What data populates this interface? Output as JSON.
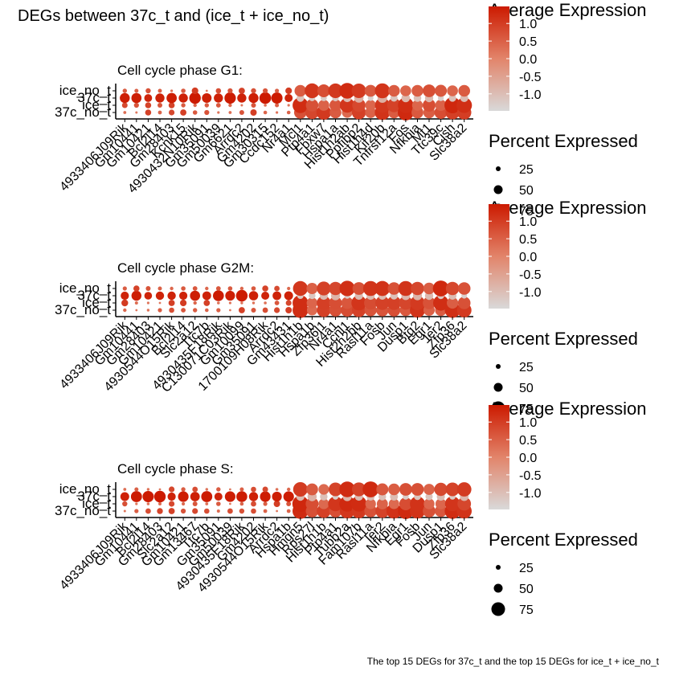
{
  "title": "DEGs between 37c_t and (ice_t + ice_no_t)",
  "caption": "The top 15 DEGs for 37c_t and the top 15 DEGs for ice_t + ice_no_t",
  "colors": {
    "low": "#d9d9d9",
    "high": "#cc1a00",
    "text": "#000000"
  },
  "legend": {
    "color_title": "Average Expression",
    "color_ticks": [
      "1.0",
      "0.5",
      "0.0",
      "-0.5",
      "-1.0"
    ],
    "size_title": "Percent Expressed",
    "size_ticks": [
      "25",
      "50",
      "75"
    ]
  },
  "chart_data": [
    {
      "type": "dotplot",
      "title": "Cell cycle phase G1:",
      "y_categories": [
        "37c_no_t",
        "ice_t",
        "37c_t",
        "ice_no_t"
      ],
      "genes": [
        "4933406J09Rik",
        "Gm10441",
        "Gm10421",
        "Bcl2l14",
        "Gm28403",
        "Kcnk15",
        "4930432N10Rik",
        "Gm35091",
        "Gm50039",
        "Gm6621",
        "Arrdc2",
        "Gm4202",
        "Gm30315",
        "Ccdc152",
        "Nr4a1",
        "Mcl1",
        "Ptp4a1",
        "Fbxw7",
        "Hspa1a",
        "Hist1h2ab",
        "Ppfibp2",
        "Hist1h4d",
        "Kif20b",
        "Tnfrsf12a",
        "Fos",
        "Nfkbia",
        "Mt1",
        "Ttc39c",
        "Cish",
        "Slc38a2"
      ],
      "color_ticks": [
        "1.0",
        "0.5",
        "0.0",
        "-0.5",
        "-1.0"
      ],
      "size_ticks": [
        "25",
        "50",
        "75"
      ]
    },
    {
      "type": "dotplot",
      "title": "Cell cycle phase G2M:",
      "y_categories": [
        "37c_no_t",
        "ice_t",
        "37c_t",
        "ice_no_t"
      ],
      "genes": [
        "4933406J09Rik",
        "Gm10441",
        "Gm28403",
        "Gm10421",
        "4930544O15Rik",
        "Bcl2l14",
        "Slc2a12",
        "Ttc7b",
        "4930435F18Rik",
        "C130071C03Rik",
        "Gm10099",
        "Gm35091",
        "1700109H08Rik",
        "Arrdc2",
        "Gm43431",
        "Hist1h1b",
        "Hspa1b",
        "Zfp36l1",
        "Nr4a1",
        "Ccnl1",
        "Hist2h2bb",
        "Rasl11a",
        "Fosb",
        "Jun",
        "Dusp1",
        "Btg2",
        "Egr1",
        "Ier2",
        "Zfp36",
        "Slc38a2"
      ],
      "color_ticks": [
        "1.0",
        "0.5",
        "0.0",
        "-0.5",
        "-1.0"
      ],
      "size_ticks": [
        "25",
        "50",
        "75"
      ]
    },
    {
      "type": "dotplot",
      "title": "Cell cycle phase S:",
      "y_categories": [
        "37c_no_t",
        "ice_t",
        "37c_t",
        "ice_no_t"
      ],
      "genes": [
        "4933406J09Rik",
        "Gm10441",
        "Bcl2l14",
        "Gm28403",
        "Slc2a12",
        "Gm10421",
        "Gm13467",
        "Ttc7b",
        "Gm35091",
        "Gm50039",
        "4930435F18Rik",
        "Gm4202",
        "4930544O15Rik",
        "Arrdc2",
        "Hspa1b",
        "Hmgn5",
        "Rps27l",
        "Hist1h1b",
        "Ptp4a1",
        "Tubb2a",
        "Fam107b",
        "Rasl11a",
        "Ier2",
        "Nfkbia",
        "Egr1",
        "Fosb",
        "Jun",
        "Dusp1",
        "Zfp36",
        "Slc38a2"
      ],
      "color_ticks": [
        "1.0",
        "0.5",
        "0.0",
        "-0.5",
        "-1.0"
      ],
      "size_ticks": [
        "25",
        "50",
        "75"
      ]
    }
  ]
}
